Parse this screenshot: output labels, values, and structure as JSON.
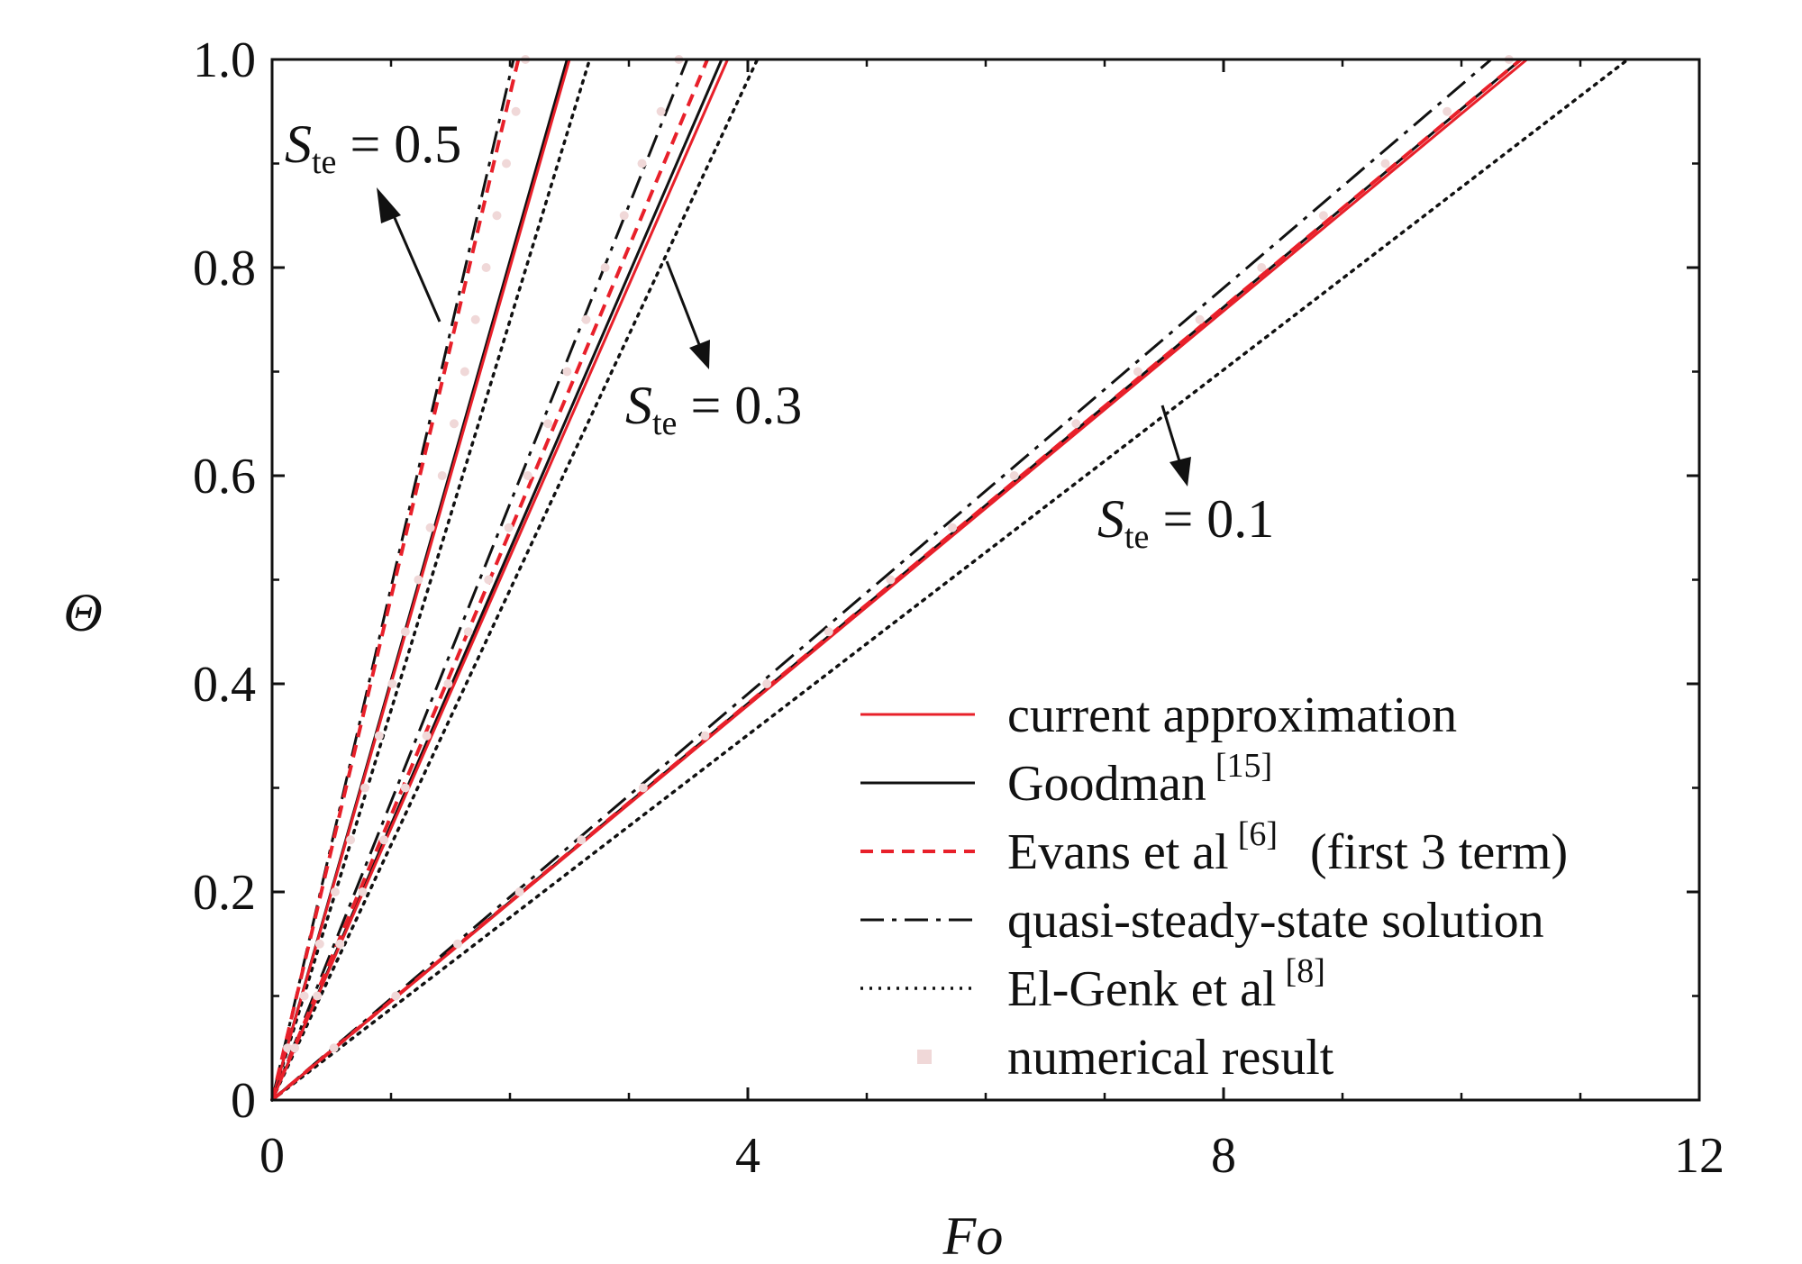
{
  "chart_data": {
    "type": "line",
    "xlabel": "Fo",
    "ylabel": "Θ",
    "xlim": [
      0,
      12
    ],
    "ylim": [
      0,
      1
    ],
    "x_ticks": [
      "0",
      "4",
      "8",
      "12"
    ],
    "y_ticks": [
      "0",
      "0.2",
      "0.4",
      "0.6",
      "0.8",
      "1.0"
    ],
    "grid": false,
    "legend_position": "bottom-right",
    "legend": [
      {
        "id": "current",
        "label": "current approximation",
        "sup": "",
        "suffix": "",
        "color": "#e8202a",
        "style": "solid"
      },
      {
        "id": "goodman",
        "label": "Goodman",
        "sup": "[15]",
        "suffix": "",
        "color": "#111111",
        "style": "solid"
      },
      {
        "id": "evans",
        "label": "Evans et al",
        "sup": "[6]",
        "suffix": "(first 3 term)",
        "color": "#e8202a",
        "style": "dashed"
      },
      {
        "id": "quasi",
        "label": "quasi-steady-state solution",
        "sup": "",
        "suffix": "",
        "color": "#111111",
        "style": "dashdot"
      },
      {
        "id": "elgenk",
        "label": "El-Genk et al",
        "sup": "[8]",
        "suffix": "",
        "color": "#111111",
        "style": "dotted"
      },
      {
        "id": "numerical",
        "label": "numerical result",
        "sup": "",
        "suffix": "",
        "color": "#f0d8d8",
        "style": "markers"
      }
    ],
    "annotations": [
      {
        "var": "S",
        "sub": "te",
        "text": " = 0.5"
      },
      {
        "var": "S",
        "sub": "te",
        "text": " = 0.3"
      },
      {
        "var": "S",
        "sub": "te",
        "text": " = 0.1"
      }
    ],
    "groups": [
      {
        "name": "S_te = 0.5",
        "series": {
          "current": 2.5,
          "goodman": 2.48,
          "evans": 2.07,
          "quasi": 2.03,
          "elgenk": 2.67
        },
        "numerical": [
          [
            0.13,
            0.05
          ],
          [
            0.27,
            0.1
          ],
          [
            0.4,
            0.15
          ],
          [
            0.53,
            0.2
          ],
          [
            0.66,
            0.25
          ],
          [
            0.78,
            0.3
          ],
          [
            0.9,
            0.35
          ],
          [
            1.01,
            0.4
          ],
          [
            1.12,
            0.45
          ],
          [
            1.23,
            0.5
          ],
          [
            1.33,
            0.55
          ],
          [
            1.43,
            0.6
          ],
          [
            1.53,
            0.65
          ],
          [
            1.62,
            0.7
          ],
          [
            1.71,
            0.75
          ],
          [
            1.8,
            0.8
          ],
          [
            1.89,
            0.85
          ],
          [
            1.97,
            0.9
          ],
          [
            2.05,
            0.95
          ],
          [
            2.13,
            1.0
          ]
        ]
      },
      {
        "name": "S_te = 0.3",
        "series": {
          "current": 3.83,
          "goodman": 3.78,
          "evans": 3.66,
          "quasi": 3.49,
          "elgenk": 4.08
        },
        "numerical": [
          [
            0.19,
            0.05
          ],
          [
            0.38,
            0.1
          ],
          [
            0.57,
            0.15
          ],
          [
            0.76,
            0.2
          ],
          [
            0.94,
            0.25
          ],
          [
            1.12,
            0.3
          ],
          [
            1.3,
            0.35
          ],
          [
            1.48,
            0.4
          ],
          [
            1.65,
            0.45
          ],
          [
            1.82,
            0.5
          ],
          [
            1.99,
            0.55
          ],
          [
            2.15,
            0.6
          ],
          [
            2.32,
            0.65
          ],
          [
            2.48,
            0.7
          ],
          [
            2.64,
            0.75
          ],
          [
            2.8,
            0.8
          ],
          [
            2.96,
            0.85
          ],
          [
            3.11,
            0.9
          ],
          [
            3.27,
            0.95
          ],
          [
            3.42,
            1.0
          ]
        ]
      },
      {
        "name": "S_te = 0.1",
        "series": {
          "current": 10.55,
          "goodman": 10.5,
          "evans": 10.5,
          "quasi": 10.25,
          "elgenk": 11.4
        },
        "numerical": [
          [
            0.52,
            0.05
          ],
          [
            1.04,
            0.1
          ],
          [
            1.56,
            0.15
          ],
          [
            2.08,
            0.2
          ],
          [
            2.6,
            0.25
          ],
          [
            3.12,
            0.3
          ],
          [
            3.64,
            0.35
          ],
          [
            4.16,
            0.4
          ],
          [
            4.68,
            0.45
          ],
          [
            5.2,
            0.5
          ],
          [
            5.72,
            0.55
          ],
          [
            6.24,
            0.6
          ],
          [
            6.76,
            0.65
          ],
          [
            7.28,
            0.7
          ],
          [
            7.8,
            0.75
          ],
          [
            8.32,
            0.8
          ],
          [
            8.84,
            0.85
          ],
          [
            9.36,
            0.9
          ],
          [
            9.88,
            0.95
          ],
          [
            10.4,
            1.0
          ]
        ]
      }
    ]
  }
}
